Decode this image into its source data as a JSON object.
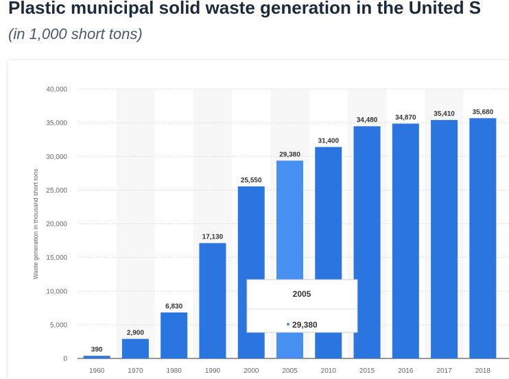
{
  "chart_data": {
    "type": "bar",
    "title": "Plastic municipal solid waste generation in the United S",
    "subtitle": "(in 1,000 short tons)",
    "y_label": "Waste generation in thousand short tons",
    "categories": [
      "1960",
      "1970",
      "1980",
      "1990",
      "2000",
      "2005",
      "2010",
      "2015",
      "2016",
      "2017",
      "2018"
    ],
    "values": [
      390,
      2900,
      6830,
      17130,
      25550,
      29380,
      31400,
      34480,
      34870,
      35410,
      35680
    ],
    "value_labels": [
      "390",
      "2,900",
      "6,830",
      "17,130",
      "25,550",
      "29,380",
      "31,400",
      "34,480",
      "34,870",
      "35,410",
      "35,680"
    ],
    "color": "#2a75e0",
    "highlight_color": "#4790f2",
    "tooltip_index": 5,
    "ylim": [
      0,
      40000
    ],
    "yticks": [
      0,
      {
        "value": 5000,
        "label": "5,000"
      },
      {
        "value": 10000,
        "label": "10,000"
      },
      {
        "value": 15000,
        "label": "15,000"
      },
      {
        "value": 20000,
        "label": "20,000"
      },
      {
        "value": 25000,
        "label": "25,000"
      },
      {
        "value": 30000,
        "label": "30,000"
      },
      {
        "value": 35000,
        "label": "35,000"
      },
      {
        "value": 40000,
        "label": "40,000"
      }
    ],
    "grid": true
  }
}
